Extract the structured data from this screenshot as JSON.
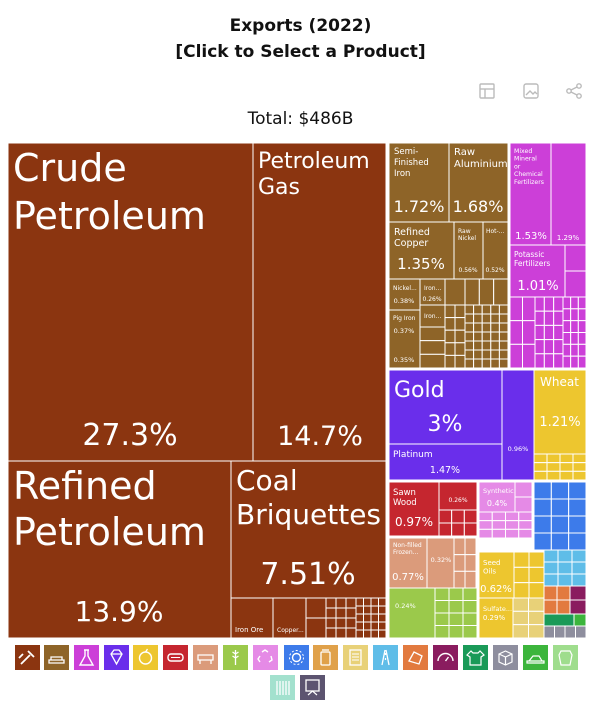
{
  "header": {
    "title": "Exports (2022)",
    "subtitle": "[Click to Select a Product]",
    "total_label": "Total: $486B"
  },
  "toolbar": {
    "icons": [
      "table-icon",
      "image-icon",
      "share-icon"
    ]
  },
  "chart_data": {
    "type": "treemap",
    "total": "$486B",
    "labeled_tiles": [
      {
        "name": "Crude Petroleum",
        "share": "27.3%",
        "color": "#8B3510"
      },
      {
        "name": "Petroleum Gas",
        "share": "14.7%",
        "color": "#8B3510"
      },
      {
        "name": "Refined Petroleum",
        "share": "13.9%",
        "color": "#8B3510"
      },
      {
        "name": "Coal Briquettes",
        "share": "7.51%",
        "color": "#8B3510"
      },
      {
        "name": "Iron Ore",
        "share": "",
        "color": "#8B3510"
      },
      {
        "name": "Copper...",
        "share": "",
        "color": "#8B3510"
      },
      {
        "name": "Semi-Finished Iron",
        "share": "1.72%",
        "color": "#8E6428"
      },
      {
        "name": "Raw Aluminium",
        "share": "1.68%",
        "color": "#8E6428"
      },
      {
        "name": "Refined Copper",
        "share": "1.35%",
        "color": "#8E6428"
      },
      {
        "name": "Raw Nickel",
        "share": "0.56%",
        "color": "#8E6428"
      },
      {
        "name": "Hot-...",
        "share": "0.52%",
        "color": "#8E6428"
      },
      {
        "name": "Nickel...",
        "share": "0.38%",
        "color": "#8E6428"
      },
      {
        "name": "Iron...",
        "share": "0.26%",
        "color": "#8E6428"
      },
      {
        "name": "Pig Iron",
        "share": "0.37%",
        "color": "#8E6428"
      },
      {
        "name": "Iron...",
        "share": "",
        "color": "#8E6428"
      },
      {
        "name": "",
        "share": "0.35%",
        "color": "#8E6428"
      },
      {
        "name": "Mixed Mineral or Chemical Fertilizers",
        "share": "1.53%",
        "color": "#CC3FD8"
      },
      {
        "name": "",
        "share": "1.29%",
        "color": "#CC3FD8"
      },
      {
        "name": "Potassic Fertilizers",
        "share": "1.01%",
        "color": "#CC3FD8"
      },
      {
        "name": "Gold",
        "share": "3%",
        "color": "#6A2EEB"
      },
      {
        "name": "Platinum",
        "share": "1.47%",
        "color": "#6A2EEB"
      },
      {
        "name": "",
        "share": "0.96%",
        "color": "#6A2EEB"
      },
      {
        "name": "Wheat",
        "share": "1.21%",
        "color": "#EDC62F"
      },
      {
        "name": "Sawn Wood",
        "share": "0.97%",
        "color": "#C5262F"
      },
      {
        "name": "",
        "share": "0.26%",
        "color": "#C5262F"
      },
      {
        "name": "Synthetic...",
        "share": "0.4%",
        "color": "#E58AE6"
      },
      {
        "name": "Non-filled Frozen...",
        "share": "0.77%",
        "color": "#DB9B7B"
      },
      {
        "name": "",
        "share": "0.32%",
        "color": "#DB9B7B"
      },
      {
        "name": "Seed Oils",
        "share": "0.62%",
        "color": "#EDC62F"
      },
      {
        "name": "Sulfate...",
        "share": "0.29%",
        "color": "#EDC62F"
      },
      {
        "name": "",
        "share": "0.24%",
        "color": "#9BC94B"
      }
    ]
  },
  "legend": {
    "items": [
      {
        "icon": "mineral-products-icon",
        "color": "#8B3510"
      },
      {
        "icon": "metals-icon",
        "color": "#8E6428"
      },
      {
        "icon": "chemical-products-icon",
        "color": "#CC3FD8"
      },
      {
        "icon": "precious-metals-icon",
        "color": "#6A2EEB"
      },
      {
        "icon": "vegetable-products-icon",
        "color": "#EDC62F"
      },
      {
        "icon": "wood-products-icon",
        "color": "#C5262F"
      },
      {
        "icon": "animal-products-icon",
        "color": "#DB9B7B"
      },
      {
        "icon": "vegetable-fats-icon",
        "color": "#9BC94B"
      },
      {
        "icon": "plastics-rubbers-icon",
        "color": "#E58AE6"
      },
      {
        "icon": "machines-icon",
        "color": "#3D7BEA"
      },
      {
        "icon": "foodstuffs-icon",
        "color": "#E0A14A"
      },
      {
        "icon": "paper-goods-icon",
        "color": "#E8D178"
      },
      {
        "icon": "transportation-icon",
        "color": "#5FBDE8"
      },
      {
        "icon": "stone-glass-icon",
        "color": "#E27A3F"
      },
      {
        "icon": "instruments-icon",
        "color": "#8A1C5F"
      },
      {
        "icon": "textiles-icon",
        "color": "#1A9A58"
      },
      {
        "icon": "miscellaneous-icon",
        "color": "#8E8E9E"
      },
      {
        "icon": "footwear-headwear-icon",
        "color": "#3CB53C"
      },
      {
        "icon": "animal-hides-icon",
        "color": "#9FDD8D"
      },
      {
        "icon": "weapons-icon",
        "color": "#A3E1CE"
      },
      {
        "icon": "arts-antiques-icon",
        "color": "#5C5470"
      }
    ]
  }
}
